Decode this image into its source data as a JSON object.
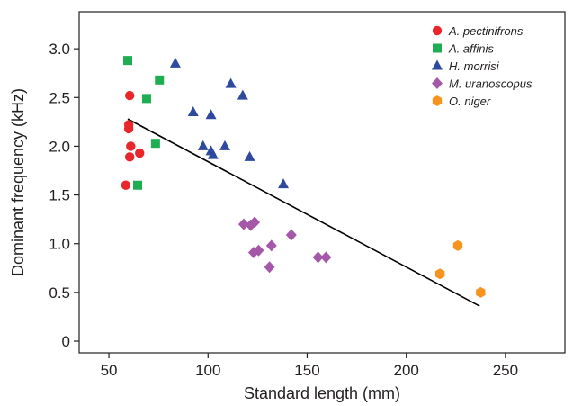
{
  "chart_data": {
    "type": "scatter",
    "xlabel": "Standard length (mm)",
    "ylabel": "Dominant frequency (kHz)",
    "xlim": [
      35,
      280
    ],
    "ylim": [
      -0.12,
      3.38
    ],
    "xticks": [
      50,
      100,
      150,
      200,
      250
    ],
    "xtick_labels": [
      "50",
      "100",
      "150",
      "200",
      "250"
    ],
    "yticks": [
      0,
      0.5,
      1.0,
      1.5,
      2.0,
      2.5,
      3.0
    ],
    "ytick_labels": [
      "0",
      "0.5",
      "1.0",
      "1.5",
      "2.0",
      "2.5",
      "3.0"
    ],
    "grid": false,
    "legend_position": "top-right",
    "series": [
      {
        "name": "A. pectinifrons",
        "marker": "circle",
        "color": "#e8262b",
        "points": [
          [
            58.5,
            1.6
          ],
          [
            60.5,
            2.52
          ],
          [
            60,
            2.22
          ],
          [
            60,
            2.18
          ],
          [
            61,
            2.0
          ],
          [
            60.5,
            1.89
          ],
          [
            65.5,
            1.93
          ]
        ]
      },
      {
        "name": "A. affinis",
        "marker": "square",
        "color": "#1fad52",
        "points": [
          [
            59.5,
            2.88
          ],
          [
            75.5,
            2.68
          ],
          [
            69,
            2.49
          ],
          [
            73.5,
            2.03
          ],
          [
            64.5,
            1.6
          ]
        ]
      },
      {
        "name": "H. morrisi",
        "marker": "triangle",
        "color": "#2e4a9e",
        "points": [
          [
            83.5,
            2.85
          ],
          [
            111.5,
            2.64
          ],
          [
            117.5,
            2.52
          ],
          [
            92.5,
            2.35
          ],
          [
            101.5,
            2.32
          ],
          [
            97.5,
            2.0
          ],
          [
            101.5,
            1.95
          ],
          [
            102.5,
            1.91
          ],
          [
            108.5,
            2.0
          ],
          [
            121,
            1.89
          ],
          [
            138,
            1.61
          ]
        ]
      },
      {
        "name": "M. uranoscopus",
        "marker": "diamond",
        "color": "#a558a8",
        "points": [
          [
            118,
            1.2
          ],
          [
            121.5,
            1.19
          ],
          [
            123.5,
            1.22
          ],
          [
            123,
            0.91
          ],
          [
            125.5,
            0.93
          ],
          [
            132,
            0.98
          ],
          [
            142,
            1.09
          ],
          [
            131,
            0.76
          ],
          [
            155.5,
            0.86
          ],
          [
            159.5,
            0.86
          ]
        ]
      },
      {
        "name": "O. niger",
        "marker": "hexagon",
        "color": "#f7941d",
        "points": [
          [
            217,
            0.69
          ],
          [
            226,
            0.98
          ],
          [
            237.5,
            0.5
          ]
        ]
      }
    ],
    "regression_line": {
      "color": "#000000",
      "x1": 59.5,
      "y1": 2.28,
      "x2": 237,
      "y2": 0.36
    }
  }
}
